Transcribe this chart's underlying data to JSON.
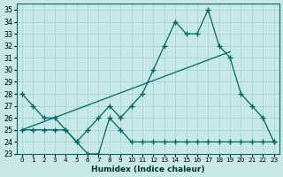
{
  "xlabel": "Humidex (Indice chaleur)",
  "background_color": "#c8e8e8",
  "grid_color": "#a8d8d8",
  "line_color": "#006666",
  "xlim": [
    -0.5,
    23.5
  ],
  "ylim": [
    23,
    35.5
  ],
  "xticks": [
    0,
    1,
    2,
    3,
    4,
    5,
    6,
    7,
    8,
    9,
    10,
    11,
    12,
    13,
    14,
    15,
    16,
    17,
    18,
    19,
    20,
    21,
    22,
    23
  ],
  "yticks": [
    23,
    24,
    25,
    26,
    27,
    28,
    29,
    30,
    31,
    32,
    33,
    34,
    35
  ],
  "series1_x": [
    0,
    1,
    2,
    3,
    4,
    5,
    6,
    7,
    8,
    9,
    10,
    11,
    12,
    13,
    14,
    15,
    16,
    17,
    18,
    19,
    20,
    21,
    22,
    23
  ],
  "series1_y": [
    28,
    27,
    26,
    26,
    25,
    24,
    25,
    26,
    27,
    26,
    27,
    28,
    30,
    32,
    34,
    33,
    33,
    35,
    32,
    31,
    28,
    27,
    26,
    24
  ],
  "series2_x": [
    0,
    1,
    2,
    3,
    4,
    5,
    6,
    7,
    8,
    9,
    10,
    11,
    12,
    13,
    14,
    15,
    16,
    17,
    18,
    19,
    20,
    21,
    22,
    23
  ],
  "series2_y": [
    25,
    25,
    25,
    25,
    25,
    24,
    23,
    23,
    26,
    25,
    24,
    24,
    24,
    24,
    24,
    24,
    24,
    24,
    24,
    24,
    24,
    24,
    24,
    24
  ],
  "series3_x": [
    0,
    19
  ],
  "series3_y": [
    25.0,
    31.5
  ]
}
